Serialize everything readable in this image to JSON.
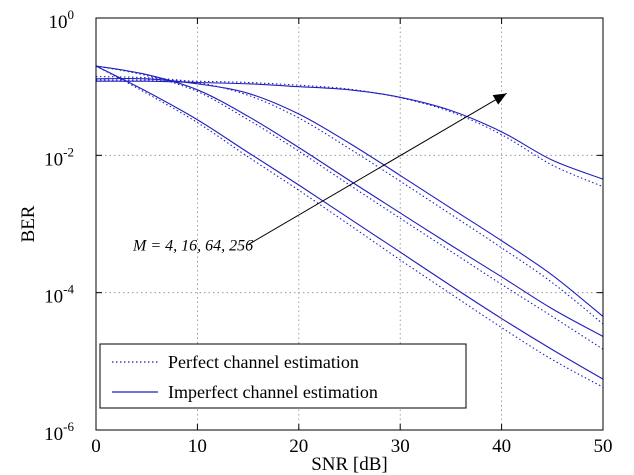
{
  "chart_data": {
    "type": "line",
    "title": "",
    "xlabel": "SNR [dB]",
    "ylabel": "BER",
    "xlim": [
      0,
      50
    ],
    "ylim": [
      1e-06,
      1
    ],
    "yscale": "log",
    "grid": true,
    "x_ticks": [
      0,
      10,
      20,
      30,
      40,
      50
    ],
    "y_ticks": [
      {
        "value": 1,
        "base": "10",
        "exp": "0"
      },
      {
        "value": 0.01,
        "base": "10",
        "exp": "-2"
      },
      {
        "value": 0.0001,
        "base": "10",
        "exp": "-4"
      },
      {
        "value": 1e-06,
        "base": "10",
        "exp": "-6"
      }
    ],
    "legend": {
      "placement": "bottom-left",
      "entries": [
        {
          "label": "Perfect channel estimation",
          "style": "dotted"
        },
        {
          "label": "Imperfect channel estimation",
          "style": "solid"
        }
      ]
    },
    "annotation": {
      "text": "M = 4, 16, 64, 256",
      "arrow_from": [
        15,
        0.0005
      ],
      "arrow_to": [
        40.5,
        0.08
      ]
    },
    "color": "#1f1fbf",
    "x": [
      0,
      5,
      10,
      15,
      20,
      25,
      30,
      35,
      40,
      45,
      50
    ],
    "series": [
      {
        "M": 4,
        "style": "solid",
        "values": [
          0.2,
          0.085,
          0.033,
          0.011,
          0.0037,
          0.0012,
          0.00039,
          0.000126,
          4.2e-05,
          1.48e-05,
          5.5e-06
        ]
      },
      {
        "M": 4,
        "style": "dotted",
        "values": [
          0.2,
          0.08,
          0.03,
          0.0095,
          0.0031,
          0.00097,
          0.0003,
          9.6e-05,
          3.1e-05,
          1.06e-05,
          4.2e-06
        ]
      },
      {
        "M": 16,
        "style": "solid",
        "values": [
          0.2,
          0.15,
          0.09,
          0.037,
          0.013,
          0.0043,
          0.00145,
          0.00049,
          0.00017,
          5.8e-05,
          2.3e-05
        ]
      },
      {
        "M": 16,
        "style": "dotted",
        "values": [
          0.2,
          0.145,
          0.085,
          0.033,
          0.0115,
          0.0037,
          0.00121,
          0.0004,
          0.000132,
          4.5e-05,
          1.5e-05
        ]
      },
      {
        "M": 64,
        "style": "solid",
        "values": [
          0.13,
          0.13,
          0.11,
          0.08,
          0.04,
          0.015,
          0.0051,
          0.0017,
          0.00057,
          0.00018,
          4.5e-05
        ]
      },
      {
        "M": 64,
        "style": "dotted",
        "values": [
          0.14,
          0.135,
          0.115,
          0.075,
          0.035,
          0.0125,
          0.0042,
          0.00138,
          0.00045,
          0.00014,
          3.5e-05
        ]
      },
      {
        "M": 256,
        "style": "solid",
        "values": [
          0.12,
          0.12,
          0.115,
          0.11,
          0.1,
          0.09,
          0.07,
          0.045,
          0.022,
          0.0085,
          0.0045
        ]
      },
      {
        "M": 256,
        "style": "dotted",
        "values": [
          0.125,
          0.125,
          0.12,
          0.115,
          0.105,
          0.092,
          0.069,
          0.043,
          0.02,
          0.0072,
          0.0035
        ]
      }
    ]
  }
}
